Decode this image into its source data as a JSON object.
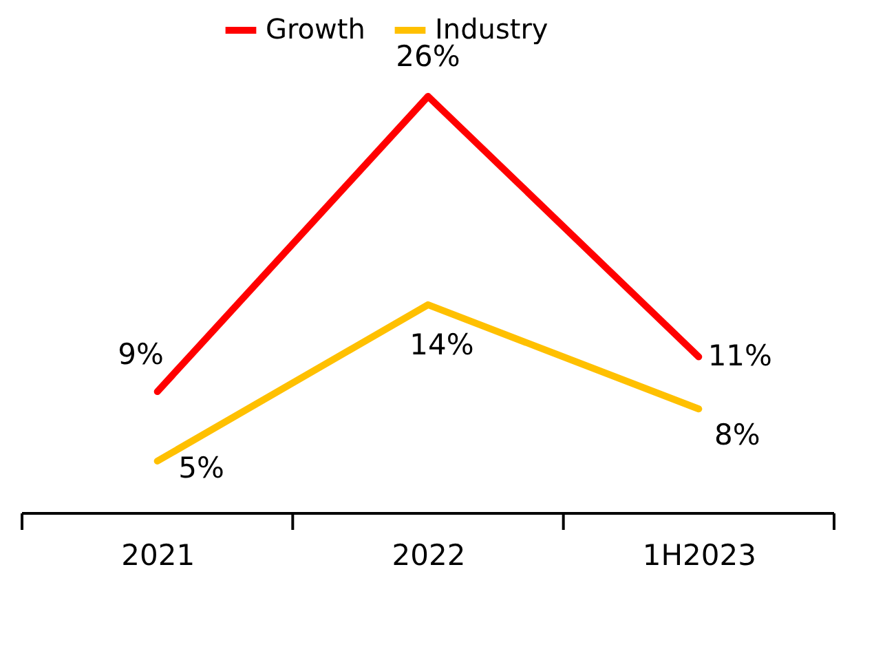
{
  "chart_data": {
    "type": "line",
    "categories": [
      "2021",
      "2022",
      "1H2023"
    ],
    "series": [
      {
        "name": "Growth",
        "color": "#ff0000",
        "values": [
          9,
          26,
          11
        ],
        "value_labels": [
          "9%",
          "26%",
          "11%"
        ]
      },
      {
        "name": "Industry",
        "color": "#ffc000",
        "values": [
          5,
          14,
          8
        ],
        "value_labels": [
          "5%",
          "14%",
          "8%"
        ]
      }
    ],
    "legend": "top",
    "marker": "none",
    "line_style": "solid"
  }
}
